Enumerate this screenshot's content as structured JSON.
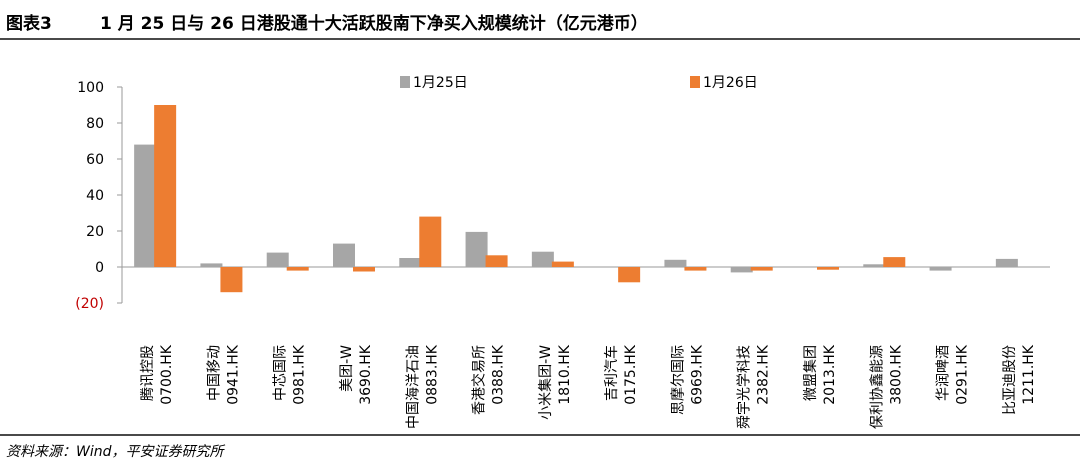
{
  "header": {
    "figure_label": "图表3",
    "title": "1 月 25 日与 26 日港股通十大活跃股南下净买入规模统计（亿元港币）"
  },
  "footer": {
    "source": "资料来源：Wind，平安证券研究所"
  },
  "chart_data": {
    "type": "bar",
    "title": "1 月 25 日与 26 日港股通十大活跃股南下净买入规模统计（亿元港币）",
    "ylim": [
      -20,
      100
    ],
    "yticks": [
      {
        "value": 100,
        "label": "100"
      },
      {
        "value": 80,
        "label": "80"
      },
      {
        "value": 60,
        "label": "60"
      },
      {
        "value": 40,
        "label": "40"
      },
      {
        "value": 20,
        "label": "20"
      },
      {
        "value": 0,
        "label": "0"
      },
      {
        "value": -20,
        "label": "(20)"
      }
    ],
    "categories": [
      {
        "name": "腾讯控股",
        "code": "0700.HK"
      },
      {
        "name": "中国移动",
        "code": "0941.HK"
      },
      {
        "name": "中芯国际",
        "code": "0981.HK"
      },
      {
        "name": "美团-W",
        "code": "3690.HK"
      },
      {
        "name": "中国海洋石油",
        "code": "0883.HK"
      },
      {
        "name": "香港交易所",
        "code": "0388.HK"
      },
      {
        "name": "小米集团-W",
        "code": "1810.HK"
      },
      {
        "name": "吉利汽车",
        "code": "0175.HK"
      },
      {
        "name": "思摩尔国际",
        "code": "6969.HK"
      },
      {
        "name": "舜宇光学科技",
        "code": "2382.HK"
      },
      {
        "name": "微盟集团",
        "code": "2013.HK"
      },
      {
        "name": "保利协鑫能源",
        "code": "3800.HK"
      },
      {
        "name": "华润啤酒",
        "code": "0291.HK"
      },
      {
        "name": "比亚迪股份",
        "code": "1211.HK"
      }
    ],
    "series": [
      {
        "name": "1月25日",
        "color": "#a6a6a6",
        "values": [
          68,
          2,
          8,
          13,
          5,
          19.5,
          8.5,
          0,
          4,
          -3,
          0,
          1.5,
          -2,
          4.5
        ]
      },
      {
        "name": "1月26日",
        "color": "#ed7d31",
        "values": [
          90,
          -14,
          -2,
          -2.5,
          28,
          6.5,
          3,
          -8.5,
          -2,
          -2,
          -1.5,
          5.5,
          0,
          0
        ]
      }
    ],
    "legend_position": "top",
    "grid": false
  }
}
